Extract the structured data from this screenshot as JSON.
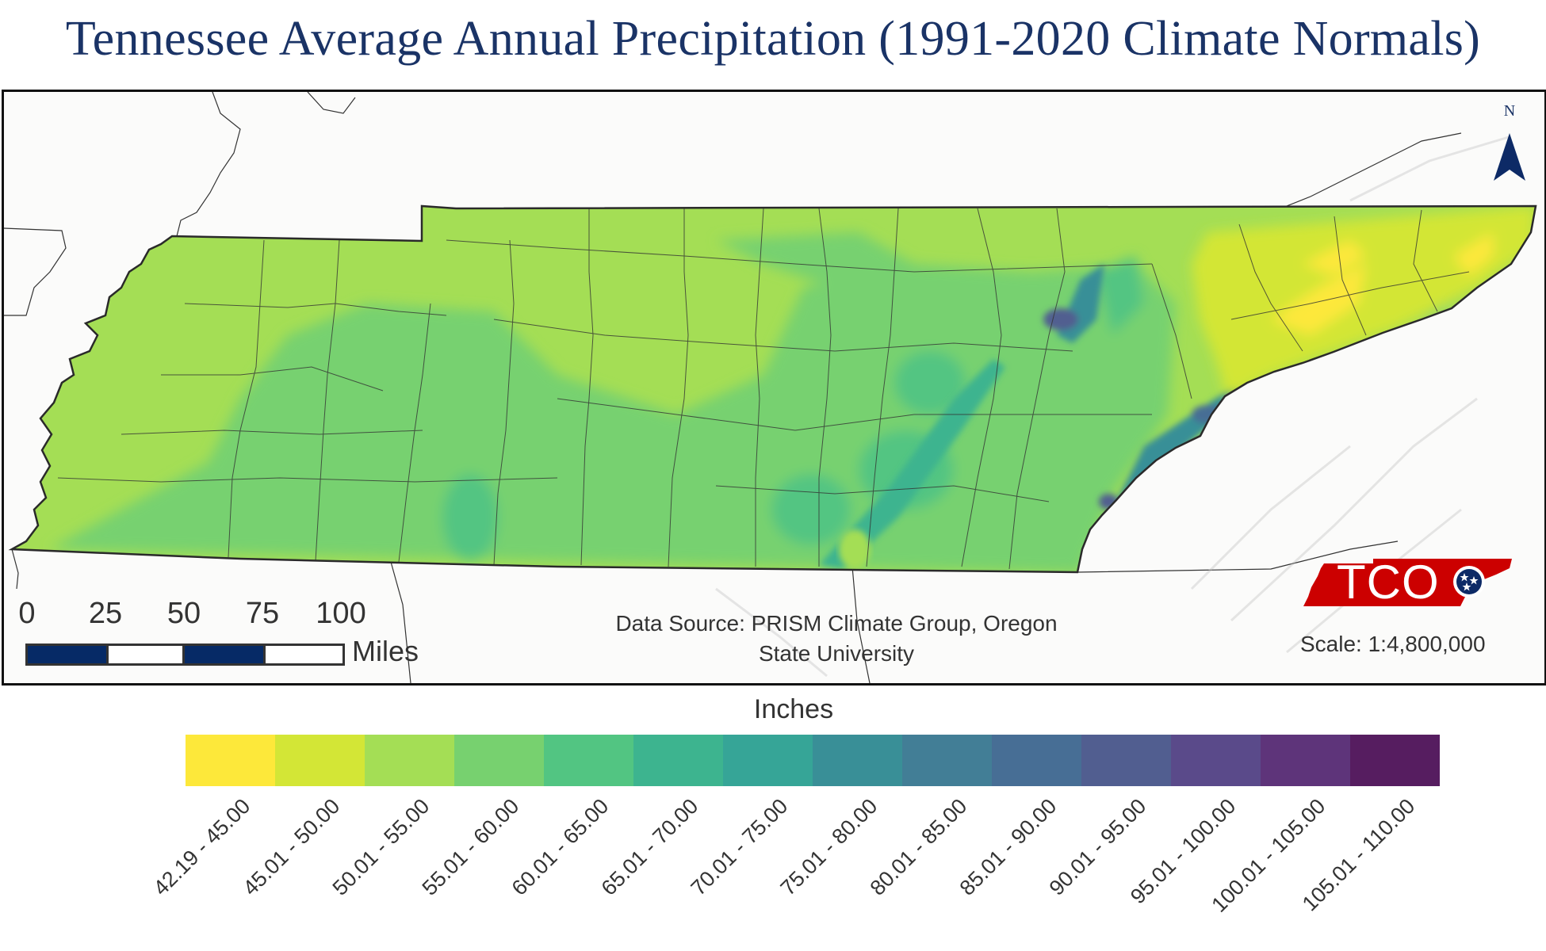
{
  "title": "Tennessee Average Annual Precipitation (1991-2020 Climate Normals)",
  "north_arrow": {
    "label": "N",
    "icon": "north-arrow-icon",
    "color": "#0d2a66"
  },
  "scale_bar": {
    "ticks": [
      "0",
      "25",
      "50",
      "75",
      "100"
    ],
    "unit": "Miles",
    "dark_color": "#062a66"
  },
  "data_source": {
    "line1": "Data Source: PRISM Climate Group, Oregon",
    "line2": "State University"
  },
  "logo": {
    "text": "TCO",
    "shape_color": "#cc0000",
    "emblem_color": "#0d2a66"
  },
  "scale_text": "Scale: 1:4,800,000",
  "legend": {
    "title": "Inches",
    "classes": [
      {
        "label": "42.19 - 45.00",
        "color": "#fde83a"
      },
      {
        "label": "45.01 - 50.00",
        "color": "#d3e636"
      },
      {
        "label": "50.01 - 55.00",
        "color": "#a4de55"
      },
      {
        "label": "55.01 - 60.00",
        "color": "#77d16f"
      },
      {
        "label": "60.01 - 65.00",
        "color": "#52c582"
      },
      {
        "label": "65.01 - 70.00",
        "color": "#3db48f"
      },
      {
        "label": "70.01 - 75.00",
        "color": "#36a597"
      },
      {
        "label": "75.01 - 80.00",
        "color": "#398f97"
      },
      {
        "label": "80.01 - 85.00",
        "color": "#427e96"
      },
      {
        "label": "85.01 - 90.00",
        "color": "#476e95"
      },
      {
        "label": "90.01 - 95.00",
        "color": "#515e90"
      },
      {
        "label": "95.01 - 100.00",
        "color": "#5a4a8a"
      },
      {
        "label": "100.01 - 105.00",
        "color": "#5e347a"
      },
      {
        "label": "105.01 - 110.00",
        "color": "#561d60"
      }
    ]
  }
}
